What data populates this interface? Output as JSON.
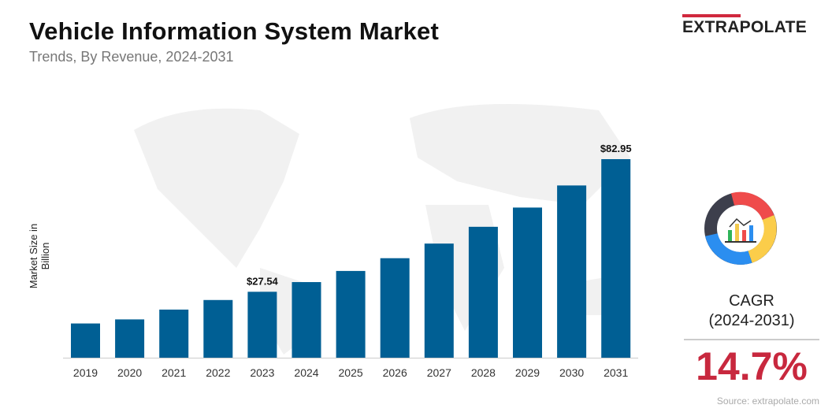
{
  "header": {
    "title": "Vehicle Information System Market",
    "subtitle": "Trends, By Revenue, 2024-2031",
    "logo": "EXTRAPOLATE"
  },
  "chart_data": {
    "type": "bar",
    "title": "Vehicle Information System Market",
    "subtitle": "Trends, By Revenue, 2024-2031",
    "ylabel": "Market Size in Billion",
    "xlabel": "",
    "categories": [
      "2019",
      "2020",
      "2021",
      "2022",
      "2023",
      "2024",
      "2025",
      "2026",
      "2027",
      "2028",
      "2029",
      "2030",
      "2031"
    ],
    "values": [
      14.3,
      16.0,
      20.1,
      24.1,
      27.54,
      31.59,
      36.24,
      41.57,
      47.68,
      54.69,
      62.73,
      71.96,
      82.95
    ],
    "data_labels": {
      "2023": "$27.54",
      "2031": "$82.95"
    },
    "ylim": [
      0,
      85
    ],
    "grid": false,
    "bar_color": "#005f94"
  },
  "cagr": {
    "label": "CAGR",
    "period": "(2024-2031)",
    "value": "14.7%",
    "color": "#c8283e"
  },
  "source": "Source: extrapolate.com",
  "icons": [
    "world-map-background",
    "donut-chart-icon"
  ]
}
